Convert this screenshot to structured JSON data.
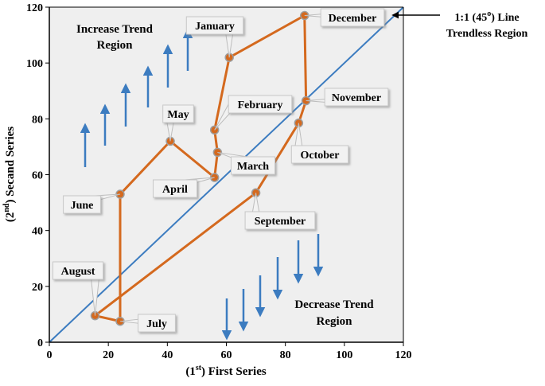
{
  "chart_data": {
    "type": "scatter",
    "xlabel_parts": {
      "pre": "(1",
      "sup": "st",
      "post": ") First Series"
    },
    "ylabel_parts": {
      "pre": "(2",
      "sup": "nd",
      "post": ") Secand Series"
    },
    "xlim": [
      0,
      120
    ],
    "ylim": [
      0,
      120
    ],
    "xticks": [
      "0",
      "20",
      "40",
      "60",
      "80",
      "100",
      "120"
    ],
    "yticks": [
      "0",
      "20",
      "40",
      "60",
      "80",
      "100",
      "120"
    ],
    "grid": false,
    "line_color": "#D4691E",
    "marker_color": "#D4691E",
    "reference_line_color": "#3C7CC0",
    "arrow_color": "#3C7CC0",
    "plot_background": "#EFEFEF",
    "callout_background": "#F2F2F2",
    "points": [
      {
        "label": "January",
        "x": 61,
        "y": 102
      },
      {
        "label": "February",
        "x": 56,
        "y": 76
      },
      {
        "label": "March",
        "x": 57,
        "y": 68
      },
      {
        "label": "April",
        "x": 56,
        "y": 59
      },
      {
        "label": "May",
        "x": 41,
        "y": 72
      },
      {
        "label": "June",
        "x": 24,
        "y": 53
      },
      {
        "label": "July",
        "x": 24,
        "y": 7.5
      },
      {
        "label": "August",
        "x": 15.5,
        "y": 9.5
      },
      {
        "label": "September",
        "x": 70,
        "y": 53.5
      },
      {
        "label": "October",
        "x": 84.5,
        "y": 78.5
      },
      {
        "label": "November",
        "x": 87,
        "y": 86.5
      },
      {
        "label": "December",
        "x": 86.5,
        "y": 117
      }
    ],
    "reference_line": {
      "from": [
        0,
        0
      ],
      "to": [
        120,
        120
      ]
    },
    "annotations": {
      "increase_region": [
        "Increase Trend",
        "Region"
      ],
      "decrease_region": [
        "Decrease Trend",
        "Region"
      ],
      "trendless_note_line1_pre": "1:1 (45",
      "trendless_note_line1_sup": "o",
      "trendless_note_line1_post": ") Line",
      "trendless_note_line2": "Trendless Region"
    }
  }
}
